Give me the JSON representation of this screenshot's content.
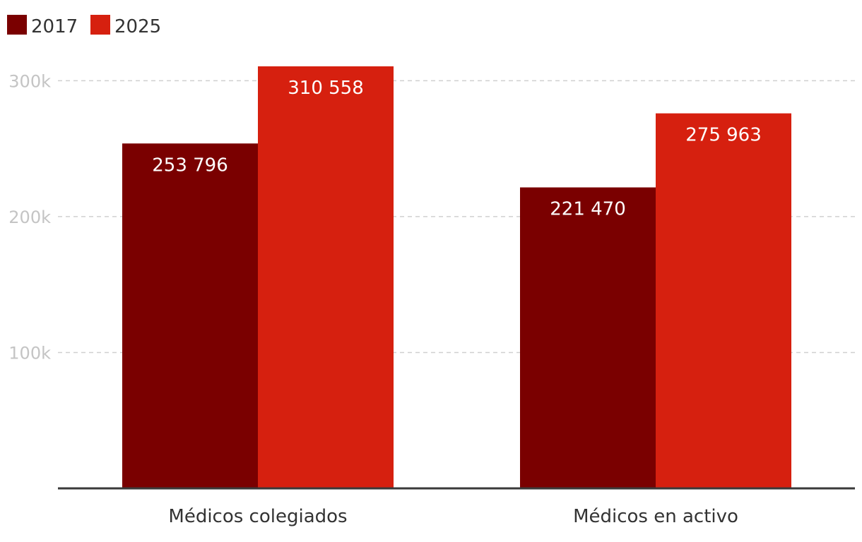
{
  "chart_data": {
    "type": "bar",
    "title": "",
    "xlabel": "",
    "ylabel": "",
    "categories": [
      "Médicos colegiados",
      "Médicos en activo"
    ],
    "series": [
      {
        "name": "2017",
        "color": "#7a0000",
        "values": [
          253796,
          221470
        ],
        "labels": [
          "253 796",
          "221 470"
        ]
      },
      {
        "name": "2025",
        "color": "#d6200f",
        "values": [
          310558,
          275963
        ],
        "labels": [
          "310 558",
          "275 963"
        ]
      }
    ],
    "ylim": [
      0,
      310558
    ],
    "yticks": [
      {
        "value": 100000,
        "label": "100k"
      },
      {
        "value": 200000,
        "label": "200k"
      },
      {
        "value": 300000,
        "label": "300k"
      }
    ],
    "grid": true,
    "legend_position": "top-left"
  }
}
